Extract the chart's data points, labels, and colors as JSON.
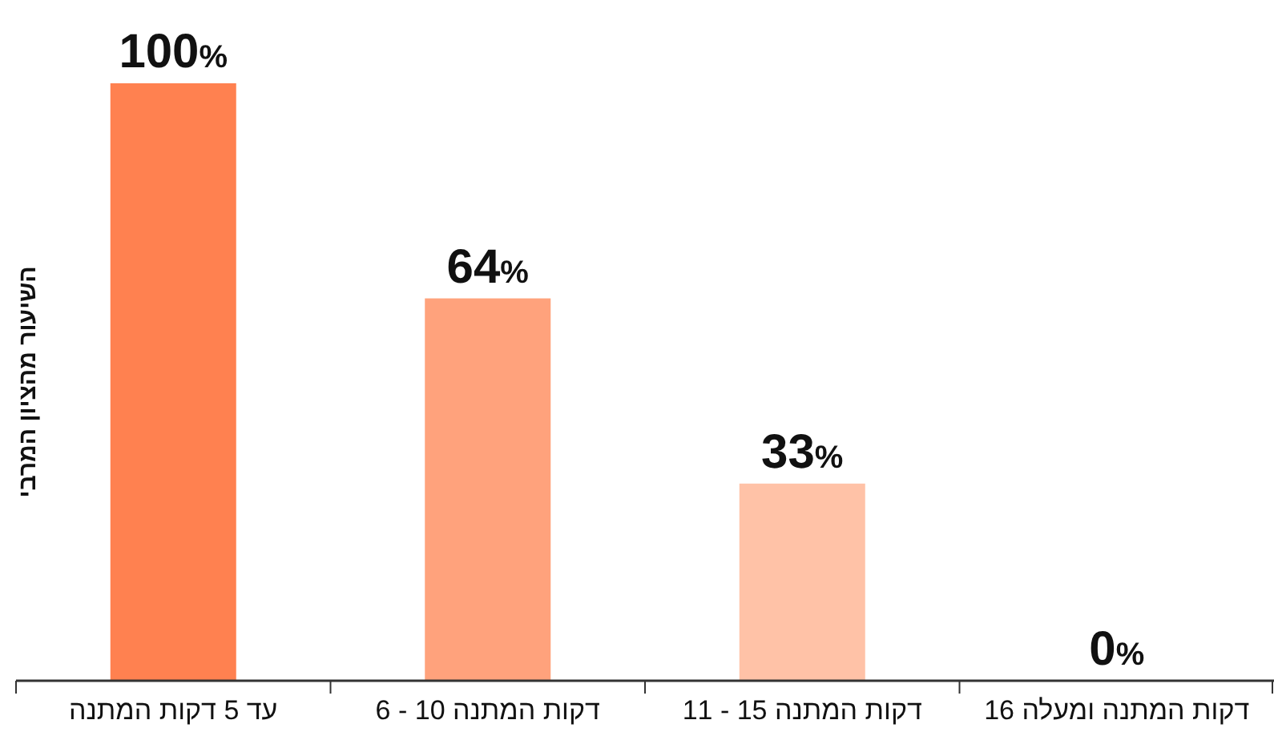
{
  "chart_data": {
    "type": "bar",
    "ylabel": "השיעור מהציון המרבי",
    "categories": [
      "עד 5 דקות המתנה",
      "6 - 10 דקות המתנה",
      "11 - 15 דקות המתנה",
      "16 דקות המתנה ומעלה"
    ],
    "values": [
      100,
      64,
      33,
      0
    ],
    "colors": [
      "#ff8150",
      "#ffa27c",
      "#ffc2a7",
      "#ffe0d2"
    ],
    "value_labels": [
      "100%",
      "64%",
      "33%",
      "0%"
    ],
    "ylim": [
      0,
      100
    ],
    "tick_labels": "x"
  }
}
